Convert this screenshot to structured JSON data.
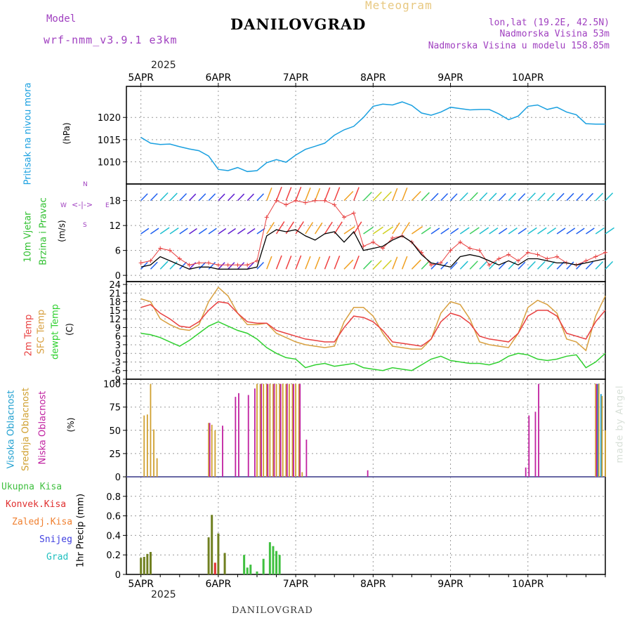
{
  "header": {
    "meteogram": "Meteogram",
    "station": "DANILOVGRAD",
    "model_label": "Model",
    "model_name": "wrf-nmm_v3.9.1 e3km",
    "lonlat": "lon,lat (19.2E, 42.5N)",
    "elevation": "Nadmorska Visina 53m",
    "model_elevation": "Nadmorska Visina u modelu 158.85m",
    "footer_station": "DANILOVGRAD",
    "credit": "made by Angel",
    "year_top": "2025",
    "year_bottom": "2025"
  },
  "colors": {
    "pressure": "#1aa0e0",
    "temp2m": "#e84040",
    "sfc": "#d8a040",
    "dewpt": "#30d030",
    "cloud_high": "#20a0d0",
    "cloud_mid": "#d0a030",
    "cloud_low": "#c020a0",
    "rain": "#40c040",
    "conv": "#e03030",
    "freezing": "#f08030",
    "snow": "#4040e0",
    "grad": "#20c0c0",
    "mono_label": "#a040c0",
    "meteogram_title": "#e8c880"
  },
  "chart_data": {
    "type": "meteogram",
    "dates": [
      "5APR",
      "6APR",
      "7APR",
      "8APR",
      "9APR",
      "10APR"
    ],
    "time_hours": [
      0,
      6,
      12,
      18,
      24,
      30,
      36,
      42,
      48,
      54,
      60,
      66,
      72,
      78,
      84,
      90,
      96,
      102,
      108,
      114,
      120,
      126,
      132,
      138,
      144
    ],
    "panels": [
      {
        "id": "pressure",
        "ylabel_title": "Pritisak na nivou mora",
        "unit": "(hPa)",
        "yticks": [
          1010,
          1015,
          1020
        ],
        "ylim": [
          1005,
          1027
        ],
        "series": [
          {
            "name": "Pressure",
            "hours": [
              0,
              3,
              6,
              9,
              12,
              15,
              18,
              21,
              24,
              27,
              30,
              33,
              36,
              39,
              42,
              45,
              48,
              51,
              54,
              57,
              60,
              63,
              66,
              69,
              72,
              75,
              78,
              81,
              84,
              87,
              90,
              93,
              96,
              99,
              102,
              105,
              108,
              111,
              114,
              117,
              120,
              123,
              126,
              129,
              132,
              135,
              138,
              141,
              144
            ],
            "values": [
              1015.5,
              1014.2,
              1013.9,
              1014.0,
              1013.4,
              1012.9,
              1012.5,
              1011.3,
              1008.3,
              1008.0,
              1008.7,
              1007.8,
              1008.0,
              1009.8,
              1010.5,
              1009.9,
              1011.5,
              1012.8,
              1013.5,
              1014.2,
              1016.0,
              1017.2,
              1018.0,
              1020.0,
              1022.5,
              1023.0,
              1022.8,
              1023.5,
              1022.7,
              1021.0,
              1020.5,
              1021.2,
              1022.3,
              1022.0,
              1021.7,
              1021.8,
              1021.8,
              1020.8,
              1019.5,
              1020.3,
              1022.5,
              1022.8,
              1021.8,
              1022.3,
              1021.2,
              1020.6,
              1018.6,
              1018.5,
              1018.5
            ]
          }
        ]
      },
      {
        "id": "wind",
        "ylabel_title": "10m Vjetar",
        "ylabel_title2": "Brzina i Pravac",
        "unit": "(m/s)",
        "compass": {
          "n": "N",
          "s": "S",
          "e": "E",
          "w": "W"
        },
        "yticks": [
          0,
          6,
          12,
          18
        ],
        "ylim": [
          -1.5,
          22
        ],
        "series": [
          {
            "name": "Wind speed",
            "hours": [
              0,
              3,
              6,
              9,
              12,
              15,
              18,
              21,
              24,
              27,
              30,
              33,
              36,
              39,
              42,
              45,
              48,
              51,
              54,
              57,
              60,
              63,
              66,
              69,
              72,
              75,
              78,
              81,
              84,
              87,
              90,
              93,
              96,
              99,
              102,
              105,
              108,
              111,
              114,
              117,
              120,
              123,
              126,
              129,
              132,
              135,
              138,
              141,
              144
            ],
            "values": [
              2.0,
              2.5,
              4.5,
              3.5,
              2.5,
              1.5,
              2.0,
              2.0,
              1.5,
              1.5,
              1.5,
              1.5,
              2.0,
              9.5,
              11.0,
              10.5,
              11.0,
              9.5,
              8.5,
              10.0,
              10.5,
              8.0,
              10.5,
              6.0,
              6.5,
              7.0,
              8.5,
              9.5,
              8.0,
              5.0,
              3.0,
              2.5,
              2.0,
              4.5,
              5.0,
              4.5,
              3.5,
              2.5,
              3.5,
              2.5,
              4.0,
              4.0,
              3.5,
              3.0,
              3.0,
              2.5,
              3.0,
              3.5,
              4.0
            ]
          },
          {
            "name": "Gust",
            "hours": [
              0,
              3,
              6,
              9,
              12,
              15,
              18,
              21,
              24,
              27,
              30,
              33,
              36,
              39,
              42,
              45,
              48,
              51,
              54,
              57,
              60,
              63,
              66,
              69,
              72,
              75,
              78,
              81,
              84,
              87,
              90,
              93,
              96,
              99,
              102,
              105,
              108,
              111,
              114,
              117,
              120,
              123,
              126,
              129,
              132,
              135,
              138,
              141,
              144
            ],
            "values": [
              3.0,
              3.5,
              6.5,
              6.0,
              4.0,
              2.5,
              3.0,
              3.0,
              2.5,
              2.5,
              2.5,
              2.5,
              3.5,
              14.0,
              18.0,
              17.0,
              18.0,
              17.5,
              18.0,
              18.0,
              17.0,
              14.0,
              15.0,
              7.0,
              8.0,
              6.5,
              9.0,
              9.5,
              8.0,
              5.5,
              2.5,
              3.0,
              6.0,
              8.0,
              6.5,
              6.0,
              2.5,
              4.0,
              5.0,
              3.5,
              5.5,
              5.0,
              4.0,
              4.5,
              3.0,
              2.5,
              3.5,
              4.5,
              5.5
            ]
          }
        ]
      },
      {
        "id": "temperature",
        "ylabel_title": "2m Temp",
        "ylabel_title2": "SFC Temp",
        "ylabel_title3": "dewpt Temp",
        "unit": "(C)",
        "yticks": [
          -9,
          -6,
          -3,
          0,
          3,
          6,
          9,
          12,
          15,
          18,
          21,
          24
        ],
        "ylim": [
          -9,
          25
        ],
        "series": [
          {
            "name": "2m Temp",
            "hours": [
              0,
              3,
              6,
              9,
              12,
              15,
              18,
              21,
              24,
              27,
              30,
              33,
              36,
              39,
              42,
              45,
              48,
              51,
              54,
              57,
              60,
              63,
              66,
              69,
              72,
              75,
              78,
              81,
              84,
              87,
              90,
              93,
              96,
              99,
              102,
              105,
              108,
              111,
              114,
              117,
              120,
              123,
              126,
              129,
              132,
              135,
              138,
              141,
              144
            ],
            "values": [
              16,
              17,
              14,
              12,
              9.5,
              9,
              11,
              15,
              18,
              17.5,
              14,
              11,
              10.5,
              10.5,
              8,
              7,
              6,
              5,
              4.5,
              4,
              4,
              9,
              13,
              12.5,
              11,
              8,
              4,
              3.5,
              3,
              2.5,
              5,
              11,
              14,
              13,
              10.5,
              6,
              5,
              4.5,
              4,
              7,
              13,
              15,
              15,
              13,
              7,
              6,
              5,
              11,
              15
            ]
          },
          {
            "name": "SFC Temp",
            "hours": [
              0,
              3,
              6,
              9,
              12,
              15,
              18,
              21,
              24,
              27,
              30,
              33,
              36,
              39,
              42,
              45,
              48,
              51,
              54,
              57,
              60,
              63,
              66,
              69,
              72,
              75,
              78,
              81,
              84,
              87,
              90,
              93,
              96,
              99,
              102,
              105,
              108,
              111,
              114,
              117,
              120,
              123,
              126,
              129,
              132,
              135,
              138,
              141,
              144
            ],
            "values": [
              19,
              18,
              12,
              10,
              8.5,
              8,
              10,
              18,
              23,
              20,
              14,
              10,
              10,
              10.5,
              7,
              5.5,
              4,
              3,
              2.5,
              2,
              2.5,
              11,
              16,
              16,
              13,
              7,
              2.5,
              2,
              1.5,
              1.5,
              5,
              14,
              18,
              17,
              12,
              4,
              3,
              2.5,
              2,
              7,
              16,
              18.5,
              17,
              14,
              5,
              4,
              1,
              13,
              20
            ]
          },
          {
            "name": "dewpt Temp",
            "hours": [
              0,
              3,
              6,
              9,
              12,
              15,
              18,
              21,
              24,
              27,
              30,
              33,
              36,
              39,
              42,
              45,
              48,
              51,
              54,
              57,
              60,
              63,
              66,
              69,
              72,
              75,
              78,
              81,
              84,
              87,
              90,
              93,
              96,
              99,
              102,
              105,
              108,
              111,
              114,
              117,
              120,
              123,
              126,
              129,
              132,
              135,
              138,
              141,
              144
            ],
            "values": [
              7,
              6.5,
              5.5,
              4,
              2.5,
              4.5,
              7,
              9.5,
              11,
              9.5,
              8,
              7,
              5,
              2,
              0,
              -1.5,
              -2,
              -5,
              -4,
              -3.5,
              -4.5,
              -4,
              -3.5,
              -5,
              -5.5,
              -6,
              -5,
              -5.5,
              -6,
              -4,
              -2,
              -1,
              -2.5,
              -3,
              -3.5,
              -3.5,
              -4,
              -3,
              -1,
              0,
              -0.5,
              -2,
              -2.5,
              -2,
              -1,
              -0.5,
              -5,
              -3,
              0
            ]
          }
        ]
      },
      {
        "id": "clouds",
        "ylabel_title": "Visoka Oblacnost",
        "ylabel_title2": "Srednja Oblacnost",
        "ylabel_title3": "Niska Oblacnost",
        "unit": "(%)",
        "yticks": [
          0,
          25,
          50,
          75,
          100
        ],
        "ylim": [
          0,
          105
        ],
        "series": [
          {
            "name": "Visoka Oblacnost",
            "hours": [
              142,
              143
            ],
            "values": [
              100,
              89
            ]
          },
          {
            "name": "Srednja Oblacnost",
            "hours": [
              1,
              2,
              3,
              4,
              5,
              6,
              21,
              22,
              23,
              24,
              34,
              36,
              37,
              38,
              39,
              40,
              41,
              42,
              43,
              44,
              45,
              46,
              47,
              48,
              49,
              50,
              141,
              142,
              143,
              144
            ],
            "values": [
              66,
              67,
              100,
              51,
              20,
              0,
              58,
              56,
              50,
              0,
              0,
              100,
              100,
              100,
              100,
              100,
              100,
              100,
              100,
              100,
              100,
              100,
              100,
              100,
              100,
              5,
              100,
              100,
              87,
              50
            ]
          },
          {
            "name": "Niska Oblacnost",
            "hours": [
              21,
              25,
              29,
              30,
              33,
              35,
              37,
              39,
              41,
              43,
              45,
              47,
              49,
              51,
              70,
              119,
              120,
              122,
              123,
              141
            ],
            "values": [
              58,
              55,
              86,
              90,
              88,
              95,
              100,
              100,
              100,
              100,
              100,
              100,
              100,
              40,
              7,
              10,
              66,
              70,
              100,
              100
            ]
          }
        ]
      },
      {
        "id": "precip",
        "ylabel_title": "1hr Precip (mm)",
        "legend": [
          "Ukupna Kisa",
          "Konvek.Kisa",
          "Zaledj.Kisa",
          "Snijeg",
          "Grad"
        ],
        "yticks": [
          0,
          0.2,
          0.4,
          0.6,
          0.8
        ],
        "ylim": [
          0,
          1.0
        ],
        "series": [
          {
            "name": "Ukupna Kisa",
            "hours": [
              0,
              1,
              2,
              3,
              21,
              22,
              24,
              26,
              32,
              33,
              34,
              36,
              38,
              40,
              41,
              42,
              43
            ],
            "values": [
              0.17,
              0.18,
              0.21,
              0.23,
              0.38,
              0.61,
              0.42,
              0.22,
              0.2,
              0.07,
              0.1,
              0.03,
              0.16,
              0.33,
              0.29,
              0.24,
              0.2
            ]
          },
          {
            "name": "Konvek.Kisa",
            "hours": [
              23
            ],
            "values": [
              0.12
            ]
          }
        ]
      }
    ]
  }
}
